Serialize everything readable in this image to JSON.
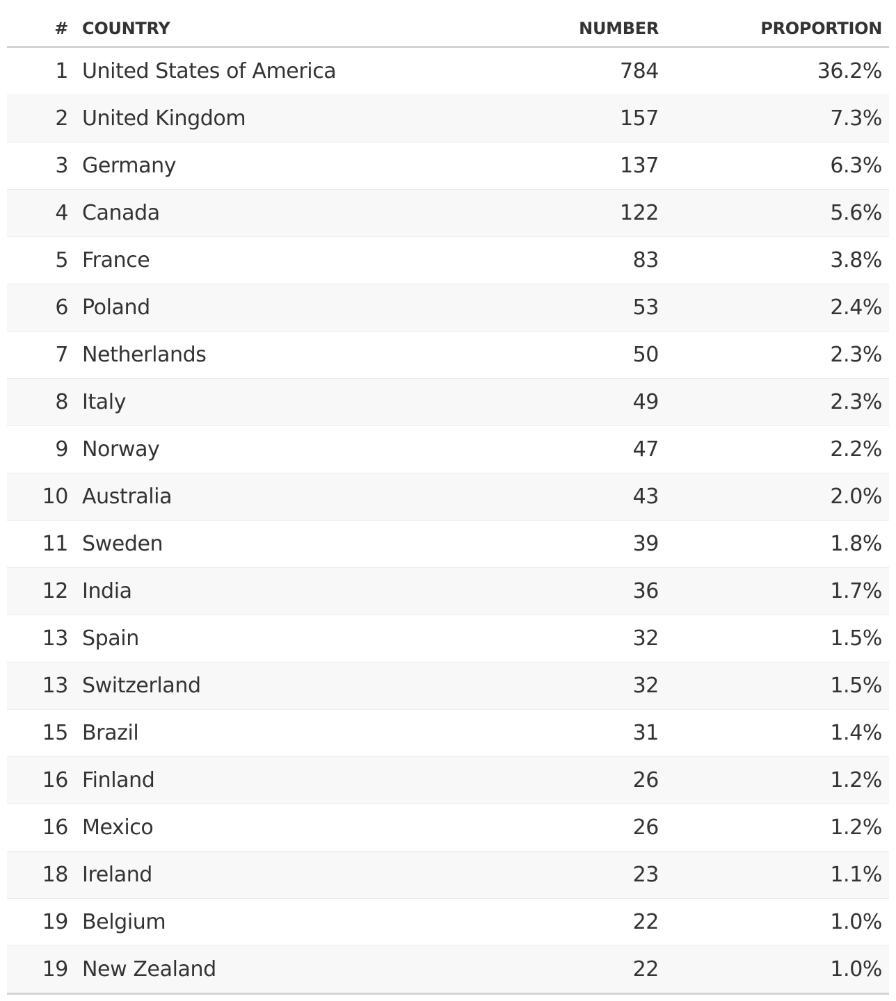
{
  "table": {
    "headers": {
      "rank": "#",
      "country": "COUNTRY",
      "number": "NUMBER",
      "proportion": "PROPORTION"
    },
    "rows": [
      {
        "rank": "1",
        "country": "United States of America",
        "number": "784",
        "proportion": "36.2%"
      },
      {
        "rank": "2",
        "country": "United Kingdom",
        "number": "157",
        "proportion": "7.3%"
      },
      {
        "rank": "3",
        "country": "Germany",
        "number": "137",
        "proportion": "6.3%"
      },
      {
        "rank": "4",
        "country": "Canada",
        "number": "122",
        "proportion": "5.6%"
      },
      {
        "rank": "5",
        "country": "France",
        "number": "83",
        "proportion": "3.8%"
      },
      {
        "rank": "6",
        "country": "Poland",
        "number": "53",
        "proportion": "2.4%"
      },
      {
        "rank": "7",
        "country": "Netherlands",
        "number": "50",
        "proportion": "2.3%"
      },
      {
        "rank": "8",
        "country": "Italy",
        "number": "49",
        "proportion": "2.3%"
      },
      {
        "rank": "9",
        "country": "Norway",
        "number": "47",
        "proportion": "2.2%"
      },
      {
        "rank": "10",
        "country": "Australia",
        "number": "43",
        "proportion": "2.0%"
      },
      {
        "rank": "11",
        "country": "Sweden",
        "number": "39",
        "proportion": "1.8%"
      },
      {
        "rank": "12",
        "country": "India",
        "number": "36",
        "proportion": "1.7%"
      },
      {
        "rank": "13",
        "country": "Spain",
        "number": "32",
        "proportion": "1.5%"
      },
      {
        "rank": "13",
        "country": "Switzerland",
        "number": "32",
        "proportion": "1.5%"
      },
      {
        "rank": "15",
        "country": "Brazil",
        "number": "31",
        "proportion": "1.4%"
      },
      {
        "rank": "16",
        "country": "Finland",
        "number": "26",
        "proportion": "1.2%"
      },
      {
        "rank": "16",
        "country": "Mexico",
        "number": "26",
        "proportion": "1.2%"
      },
      {
        "rank": "18",
        "country": "Ireland",
        "number": "23",
        "proportion": "1.1%"
      },
      {
        "rank": "19",
        "country": "Belgium",
        "number": "22",
        "proportion": "1.0%"
      },
      {
        "rank": "19",
        "country": "New Zealand",
        "number": "22",
        "proportion": "1.0%"
      }
    ]
  },
  "colors": {
    "text": "#333333",
    "row_alt_background": "#f8f8f8",
    "header_rule": "#d3d3d3"
  }
}
